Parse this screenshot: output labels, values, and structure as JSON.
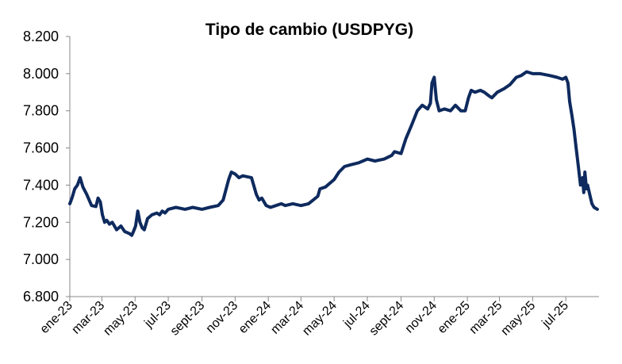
{
  "chart_data": {
    "type": "line",
    "title": "Tipo de cambio (USDPYG)",
    "xlabel": "",
    "ylabel": "",
    "ylim": [
      6800,
      8200
    ],
    "y_ticks": [
      "6.800",
      "7.000",
      "7.200",
      "7.400",
      "7.600",
      "7.800",
      "8.000",
      "8.200"
    ],
    "x_ticks": [
      "ene-23",
      "mar-23",
      "may-23",
      "jul-23",
      "sept-23",
      "nov-23",
      "ene-24",
      "mar-24",
      "may-24",
      "jul-24",
      "sept-24",
      "nov-24",
      "ene-25",
      "mar-25",
      "may-25",
      "jul-25"
    ],
    "x_tick_dates": [
      "2023-01-01",
      "2023-03-01",
      "2023-05-01",
      "2023-07-01",
      "2023-09-01",
      "2023-11-01",
      "2024-01-01",
      "2024-03-01",
      "2024-05-01",
      "2024-07-01",
      "2024-09-01",
      "2024-11-01",
      "2025-01-01",
      "2025-03-01",
      "2025-05-01",
      "2025-07-01"
    ],
    "x_range": [
      "2023-01-01",
      "2025-08-31"
    ],
    "grid": false,
    "line_color": "#0e2a5e",
    "series": [
      {
        "x": [
          "2023-01-01",
          "2023-01-05",
          "2023-01-10",
          "2023-01-15",
          "2023-01-20",
          "2023-01-25",
          "2023-02-01",
          "2023-02-10",
          "2023-02-18",
          "2023-02-22",
          "2023-02-26",
          "2023-03-02",
          "2023-03-06",
          "2023-03-10",
          "2023-03-15",
          "2023-03-20",
          "2023-03-28",
          "2023-04-05",
          "2023-04-12",
          "2023-04-20",
          "2023-04-25",
          "2023-04-28",
          "2023-05-02",
          "2023-05-06",
          "2023-05-10",
          "2023-05-14",
          "2023-05-18",
          "2023-05-24",
          "2023-06-01",
          "2023-06-10",
          "2023-06-15",
          "2023-06-20",
          "2023-06-25",
          "2023-07-01",
          "2023-07-15",
          "2023-08-01",
          "2023-08-15",
          "2023-09-01",
          "2023-09-15",
          "2023-10-01",
          "2023-10-10",
          "2023-10-20",
          "2023-10-25",
          "2023-11-01",
          "2023-11-08",
          "2023-11-15",
          "2023-12-01",
          "2023-12-10",
          "2023-12-15",
          "2023-12-20",
          "2023-12-28",
          "2024-01-05",
          "2024-01-15",
          "2024-01-25",
          "2024-02-01",
          "2024-02-15",
          "2024-03-01",
          "2024-03-15",
          "2024-04-01",
          "2024-04-05",
          "2024-04-15",
          "2024-05-01",
          "2024-05-10",
          "2024-05-20",
          "2024-06-01",
          "2024-06-15",
          "2024-07-01",
          "2024-07-15",
          "2024-08-01",
          "2024-08-15",
          "2024-08-20",
          "2024-09-01",
          "2024-09-10",
          "2024-09-20",
          "2024-10-01",
          "2024-10-10",
          "2024-10-20",
          "2024-10-25",
          "2024-10-28",
          "2024-11-01",
          "2024-11-05",
          "2024-11-10",
          "2024-11-20",
          "2024-12-01",
          "2024-12-10",
          "2024-12-20",
          "2024-12-28",
          "2025-01-03",
          "2025-01-08",
          "2025-01-15",
          "2025-01-25",
          "2025-02-01",
          "2025-02-10",
          "2025-02-15",
          "2025-02-25",
          "2025-03-10",
          "2025-03-20",
          "2025-04-01",
          "2025-04-10",
          "2025-04-20",
          "2025-05-01",
          "2025-05-15",
          "2025-06-01",
          "2025-06-15",
          "2025-06-25",
          "2025-07-01",
          "2025-07-05",
          "2025-07-08",
          "2025-07-12",
          "2025-07-16",
          "2025-07-20",
          "2025-07-24",
          "2025-07-28",
          "2025-08-01",
          "2025-08-03",
          "2025-08-05",
          "2025-08-08",
          "2025-08-10",
          "2025-08-14",
          "2025-08-18",
          "2025-08-22",
          "2025-08-28"
        ],
        "y": [
          7300,
          7330,
          7380,
          7400,
          7440,
          7390,
          7350,
          7290,
          7285,
          7330,
          7310,
          7240,
          7200,
          7210,
          7190,
          7200,
          7160,
          7180,
          7150,
          7140,
          7130,
          7150,
          7180,
          7260,
          7200,
          7170,
          7160,
          7220,
          7240,
          7250,
          7240,
          7260,
          7250,
          7270,
          7280,
          7270,
          7280,
          7270,
          7280,
          7290,
          7320,
          7430,
          7470,
          7460,
          7440,
          7450,
          7440,
          7350,
          7320,
          7330,
          7290,
          7280,
          7290,
          7300,
          7290,
          7300,
          7290,
          7300,
          7340,
          7380,
          7390,
          7430,
          7470,
          7500,
          7510,
          7520,
          7540,
          7530,
          7540,
          7560,
          7580,
          7570,
          7650,
          7720,
          7800,
          7830,
          7810,
          7840,
          7950,
          7980,
          7860,
          7800,
          7810,
          7800,
          7830,
          7800,
          7800,
          7870,
          7910,
          7900,
          7910,
          7900,
          7880,
          7870,
          7900,
          7920,
          7940,
          7980,
          7990,
          8010,
          8000,
          8000,
          7990,
          7980,
          7970,
          7980,
          7950,
          7850,
          7780,
          7700,
          7600,
          7500,
          7400,
          7440,
          7360,
          7470,
          7380,
          7400,
          7350,
          7300,
          7280,
          7270
        ]
      }
    ]
  }
}
